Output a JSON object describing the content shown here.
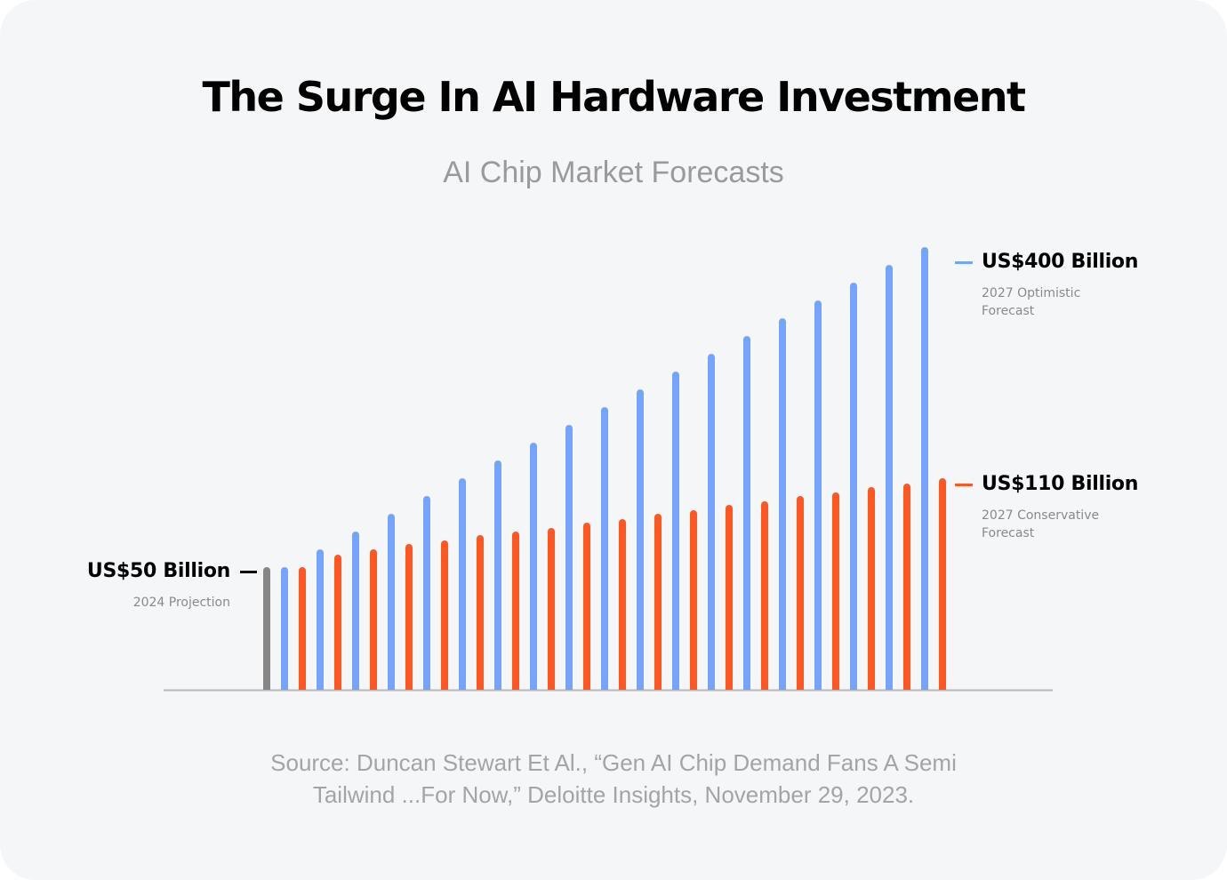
{
  "title": "The Surge In AI Hardware Investment",
  "subtitle": "AI Chip Market Forecasts",
  "source": {
    "line1": "Source: Duncan Stewart Et Al., “Gen AI Chip Demand Fans A Semi",
    "line2": "Tailwind ...For Now,” Deloitte Insights, November 29, 2023."
  },
  "annotations": {
    "start": {
      "value_label": "US$50 Billion",
      "caption": "2024 Projection"
    },
    "optimistic": {
      "value_label": "US$400 Billion",
      "caption_line1": "2027 Optimistic",
      "caption_line2": "Forecast"
    },
    "conservative": {
      "value_label": "US$110 Billion",
      "caption_line1": "2027 Conservative",
      "caption_line2": "Forecast"
    }
  },
  "colors": {
    "start": "#868686",
    "optimistic": "#76a3fb",
    "conservative": "#ff5722",
    "axis": "#b8b8b8"
  },
  "chart_data": {
    "type": "bar",
    "title": "The Surge In AI Hardware Investment",
    "subtitle": "AI Chip Market Forecasts",
    "xlabel": "",
    "ylabel": "",
    "units": "US$ Billion",
    "grid": false,
    "legend": "none (direct labels: left and right)",
    "start": {
      "name": "2024 Projection",
      "value": 50
    },
    "series": [
      {
        "name": "2027 Optimistic Forecast",
        "values": [
          50,
          69.4,
          88.9,
          108.3,
          127.8,
          147.2,
          166.7,
          186.1,
          205.6,
          225,
          244.4,
          263.9,
          283.3,
          302.8,
          322.2,
          341.7,
          361.1,
          380.6,
          400
        ]
      },
      {
        "name": "2027 Conservative Forecast",
        "values": [
          50,
          58.4,
          62,
          65.6,
          68,
          71.6,
          74,
          76.4,
          80,
          82.4,
          86,
          88.4,
          92,
          94.4,
          98,
          100.4,
          104,
          106.4,
          110
        ]
      }
    ]
  }
}
